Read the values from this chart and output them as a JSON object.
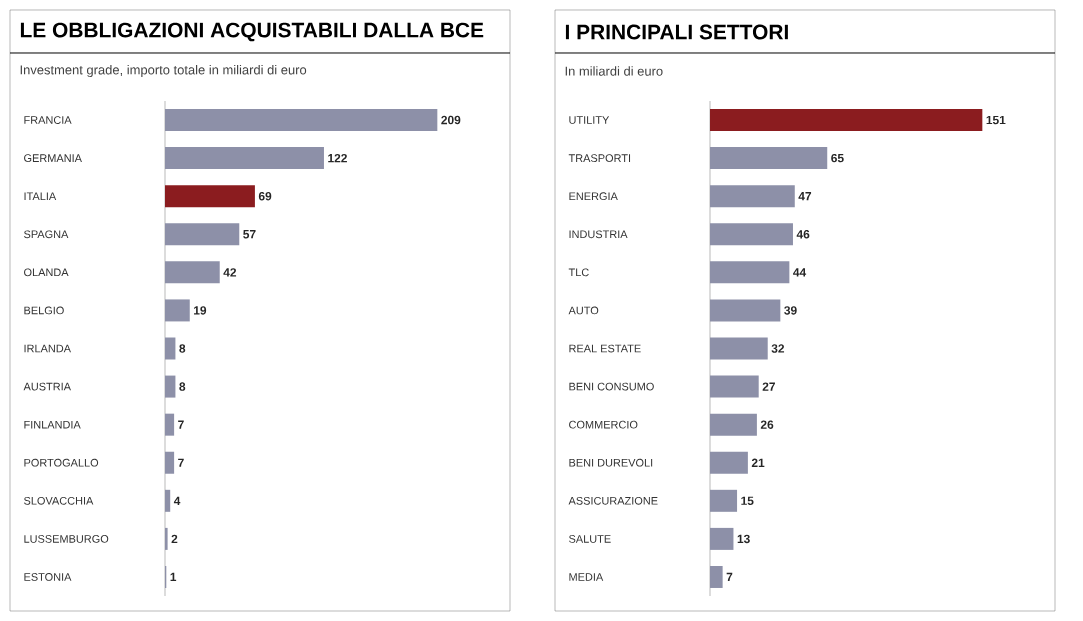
{
  "chart_data": [
    {
      "type": "bar",
      "orientation": "horizontal",
      "title": "LE OBBLIGAZIONI ACQUISTABILI DALLA BCE",
      "subtitle": "Investment grade, importo totale in miliardi di euro",
      "categories": [
        "FRANCIA",
        "GERMANIA",
        "ITALIA",
        "SPAGNA",
        "OLANDA",
        "BELGIO",
        "IRLANDA",
        "AUSTRIA",
        "FINLANDIA",
        "PORTOGALLO",
        "SLOVACCHIA",
        "LUSSEMBURGO",
        "ESTONIA"
      ],
      "values": [
        209,
        122,
        69,
        57,
        42,
        19,
        8,
        8,
        7,
        7,
        4,
        2,
        1
      ],
      "colors": [
        "#8d90a8",
        "#8d90a8",
        "#8b1c1f",
        "#8d90a8",
        "#8d90a8",
        "#8d90a8",
        "#8d90a8",
        "#8d90a8",
        "#8d90a8",
        "#8d90a8",
        "#8d90a8",
        "#8d90a8",
        "#8d90a8"
      ],
      "data_labels": true,
      "tick_labels": "y"
    },
    {
      "type": "bar",
      "orientation": "horizontal",
      "title": "I PRINCIPALI SETTORI",
      "subtitle": "In miliardi di euro",
      "categories": [
        "UTILITY",
        "TRASPORTI",
        "ENERGIA",
        "INDUSTRIA",
        "TLC",
        "AUTO",
        "REAL ESTATE",
        "BENI CONSUMO",
        "COMMERCIO",
        "BENI DUREVOLI",
        "ASSICURAZIONE",
        "SALUTE",
        "MEDIA"
      ],
      "values": [
        151,
        65,
        47,
        46,
        44,
        39,
        32,
        27,
        26,
        21,
        15,
        13,
        7
      ],
      "colors": [
        "#8b1c1f",
        "#8d90a8",
        "#8d90a8",
        "#8d90a8",
        "#8d90a8",
        "#8d90a8",
        "#8d90a8",
        "#8d90a8",
        "#8d90a8",
        "#8d90a8",
        "#8d90a8",
        "#8d90a8",
        "#8d90a8"
      ],
      "data_labels": true,
      "tick_labels": "y"
    }
  ]
}
